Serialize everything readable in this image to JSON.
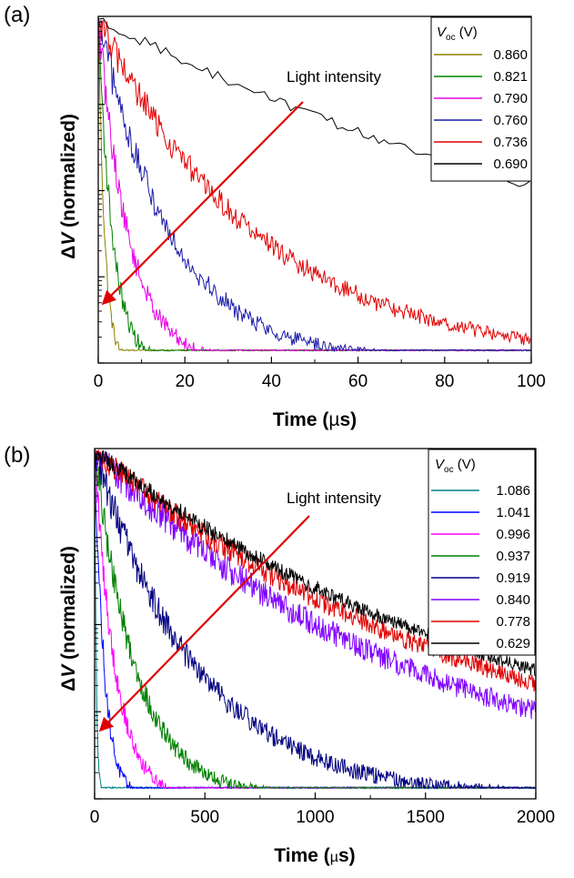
{
  "chart_data": [
    {
      "type": "line",
      "panel_label": "(a)",
      "xlabel": "Time (µs)",
      "ylabel": "ΔV (normalized)",
      "xlim": [
        0,
        100
      ],
      "xticks": [
        "0",
        "20",
        "40",
        "60",
        "80",
        "100"
      ],
      "legend_header": "Voc (V)",
      "legend_position": "top-right",
      "annotation": "Light intensity",
      "grid": false,
      "series": [
        {
          "name": "0.860",
          "color": "#8b8000",
          "tau": 1.5,
          "noise": 0.04,
          "step": 0.2
        },
        {
          "name": "0.821",
          "color": "#008000",
          "tau": 3.3,
          "noise": 0.05,
          "step": 0.2
        },
        {
          "name": "0.790",
          "color": "#e600e6",
          "tau": 7.0,
          "noise": 0.05,
          "step": 0.2
        },
        {
          "name": "0.760",
          "color": "#1a1aa8",
          "tau": 17.0,
          "noise": 0.05,
          "step": 0.25
        },
        {
          "name": "0.736",
          "color": "#e00000",
          "tau": 37.0,
          "noise": 0.045,
          "step": 0.25
        },
        {
          "name": "0.690",
          "color": "#000000",
          "tau": 150.0,
          "noise": 0.015,
          "step": 1.2
        }
      ]
    },
    {
      "type": "line",
      "panel_label": "(b)",
      "xlabel": "Time (µs)",
      "ylabel": "ΔV (normalized)",
      "xlim": [
        0,
        2000
      ],
      "xticks": [
        "0",
        "500",
        "1000",
        "1500",
        "2000"
      ],
      "legend_header": "Voc (V)",
      "legend_position": "top-right",
      "annotation": "Light intensity",
      "grid": false,
      "series": [
        {
          "name": "1.086",
          "color": "#008080",
          "tau": 8,
          "noise": 0.04,
          "step": 2
        },
        {
          "name": "1.041",
          "color": "#0000ff",
          "tau": 45,
          "noise": 0.05,
          "step": 3
        },
        {
          "name": "0.996",
          "color": "#ff00ff",
          "tau": 95,
          "noise": 0.05,
          "step": 3
        },
        {
          "name": "0.937",
          "color": "#008000",
          "tau": 190,
          "noise": 0.05,
          "step": 3
        },
        {
          "name": "0.919",
          "color": "#000080",
          "tau": 470,
          "noise": 0.05,
          "step": 3
        },
        {
          "name": "0.840",
          "color": "#8000ff",
          "tau": 1450,
          "noise": 0.045,
          "step": 3
        },
        {
          "name": "0.778",
          "color": "#e00000",
          "tau": 1800,
          "noise": 0.035,
          "step": 3
        },
        {
          "name": "0.629",
          "color": "#000000",
          "tau": 2000,
          "noise": 0.025,
          "step": 3
        }
      ]
    }
  ]
}
